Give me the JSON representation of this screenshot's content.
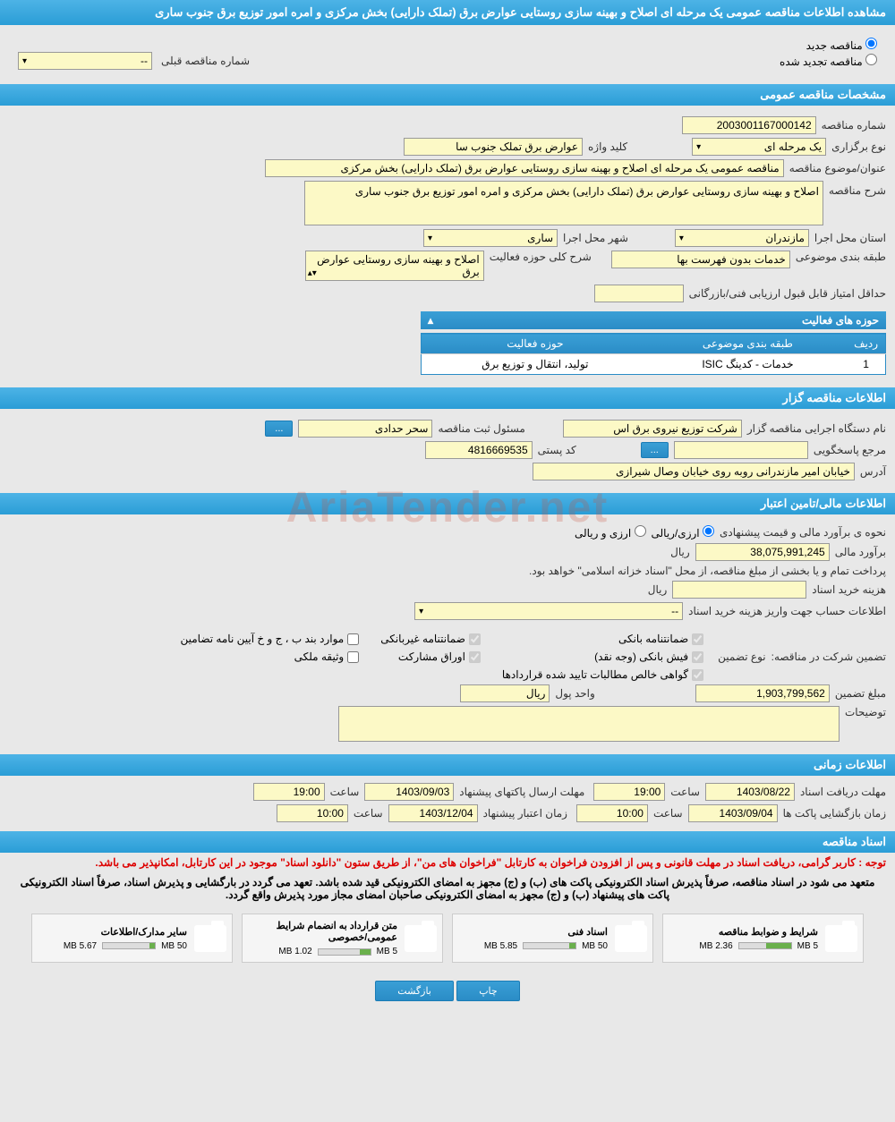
{
  "page_title": "مشاهده اطلاعات مناقصه عمومی یک مرحله ای اصلاح و بهینه سازی روستایی عوارض برق (تملک دارایی) بخش مرکزی و امره امور توزیع برق جنوب ساری",
  "radio": {
    "new_label": "مناقصه جدید",
    "renewed_label": "مناقصه تجدید شده",
    "prev_number_label": "شماره مناقصه قبلی",
    "prev_number": "--"
  },
  "sections": {
    "general": "مشخصات مناقصه عمومی",
    "organizer": "اطلاعات مناقصه گزار",
    "financial": "اطلاعات مالی/تامین اعتبار",
    "timing": "اطلاعات زمانی",
    "docs": "اسناد مناقصه"
  },
  "general": {
    "tender_no_label": "شماره مناقصه",
    "tender_no": "2003001167000142",
    "type_label": "نوع برگزاری",
    "type": "یک مرحله ای",
    "keyword_label": "کلید واژه",
    "keyword": "عوارض برق تملک جنوب سا",
    "subject_label": "عنوان/موضوع مناقصه",
    "subject": "مناقصه عمومی یک مرحله ای اصلاح و بهینه سازی روستایی عوارض برق (تملک دارایی) بخش مرکزی",
    "desc_label": "شرح مناقصه",
    "desc": "اصلاح و بهینه سازی روستایی عوارض برق (تملک دارایی) بخش مرکزی و امره امور توزیع برق جنوب ساری",
    "province_label": "استان محل اجرا",
    "province": "مازندران",
    "city_label": "شهر محل اجرا",
    "city": "ساری",
    "classification_label": "طبقه بندی موضوعی",
    "classification": "خدمات بدون فهرست بها",
    "activity_desc_label": "شرح کلی حوزه فعالیت",
    "activity_desc": "اصلاح و بهینه سازی روستایی عوارض برق",
    "min_score_label": "حداقل امتیاز قابل قبول ارزیابی فنی/بازرگانی",
    "min_score": ""
  },
  "activity_table": {
    "title": "حوزه های فعالیت",
    "col_row": "ردیف",
    "col_class": "طبقه بندی موضوعی",
    "col_domain": "حوزه فعالیت",
    "row1_num": "1",
    "row1_class": "خدمات - کدینگ ISIC",
    "row1_domain": "تولید، انتقال و توزیع برق"
  },
  "organizer": {
    "name_label": "نام دستگاه اجرایی مناقصه گزار",
    "name": "شرکت توزیع نیروی برق اس",
    "responsible_label": "مسئول ثبت مناقصه",
    "responsible": "سحر حدادی",
    "more_btn": "...",
    "contact_label": "مرجع پاسخگویی",
    "contact": "",
    "postal_label": "کد پستی",
    "postal": "4816669535",
    "address_label": "آدرس",
    "address": "خیابان امیر مازندرانی روبه روی خیابان وصال شیرازی"
  },
  "financial": {
    "method_label": "نحوه ی برآورد مالی و قیمت پیشنهادی",
    "method_opt1": "ارزی/ریالی",
    "method_opt2": "ارزی و ریالی",
    "estimate_label": "برآورد مالی",
    "estimate": "38,075,991,245",
    "currency": "ریال",
    "payment_note": "پرداخت تمام و یا بخشی از مبلغ مناقصه، از محل \"اسناد خزانه اسلامی\" خواهد بود.",
    "purchase_label": "هزینه خرید اسناد",
    "purchase": "",
    "account_label": "اطلاعات حساب جهت واریز هزینه خرید اسناد",
    "account": "--",
    "guarantee_label": "تضمین شرکت در مناقصه:",
    "guarantee_type_label": "نوع تضمین",
    "chk_bank": "ضمانتنامه بانکی",
    "chk_nonbank": "ضمانتنامه غیربانکی",
    "chk_items": "موارد بند ب ، ج و خ آیین نامه تضامین",
    "chk_cash": "فیش بانکی (وجه نقد)",
    "chk_bonds": "اوراق مشارکت",
    "chk_property": "وثیقه ملکی",
    "chk_net": "گواهی خالص مطالبات تایید شده قراردادها",
    "amount_label": "مبلغ تضمین",
    "amount": "1,903,799,562",
    "unit_label": "واحد پول",
    "unit": "ریال",
    "notes_label": "توضیحات",
    "notes": ""
  },
  "timing": {
    "receive_label": "مهلت دریافت اسناد",
    "receive_date": "1403/08/22",
    "receive_time_label": "ساعت",
    "receive_time": "19:00",
    "send_label": "مهلت ارسال پاکتهای پیشنهاد",
    "send_date": "1403/09/03",
    "send_time": "19:00",
    "open_label": "زمان بازگشایی پاکت ها",
    "open_date": "1403/09/04",
    "open_time": "10:00",
    "validity_label": "زمان اعتبار پیشنهاد",
    "validity_date": "1403/12/04",
    "validity_time": "10:00"
  },
  "docs": {
    "red_notice": "توجه : کاربر گرامی، دریافت اسناد در مهلت قانونی و پس از افزودن فراخوان به کارتابل \"فراخوان های من\"، از طریق ستون \"دانلود اسناد\" موجود در این کارتابل، امکانپذیر می باشد.",
    "black_notice": "متعهد می شود در اسناد مناقصه، صرفاً پذیرش اسناد الکترونیکی پاکت های (ب) و (ج) مجهز به امضای الکترونیکی قید شده باشد. تعهد می گردد در بارگشایی و پذیرش اسناد، صرفاً اسناد الکترونیکی پاکت های پیشنهاد (ب) و (ج) مجهز به امضای الکترونیکی صاحبان امضای مجاز مورد پذیرش واقع گردد.",
    "doc1_title": "شرایط و ضوابط مناقصه",
    "doc1_size": "2.36 MB",
    "doc1_max": "5 MB",
    "doc2_title": "اسناد فنی",
    "doc2_size": "5.85 MB",
    "doc2_max": "50 MB",
    "doc3_title": "متن قرارداد به انضمام شرایط عمومی/خصوصی",
    "doc3_size": "1.02 MB",
    "doc3_max": "5 MB",
    "doc4_title": "سایر مدارک/اطلاعات",
    "doc4_size": "5.67 MB",
    "doc4_max": "50 MB"
  },
  "footer": {
    "print": "چاپ",
    "back": "بازگشت"
  },
  "progress": {
    "doc1_pct": 47,
    "doc2_pct": 12,
    "doc3_pct": 20,
    "doc4_pct": 11
  }
}
